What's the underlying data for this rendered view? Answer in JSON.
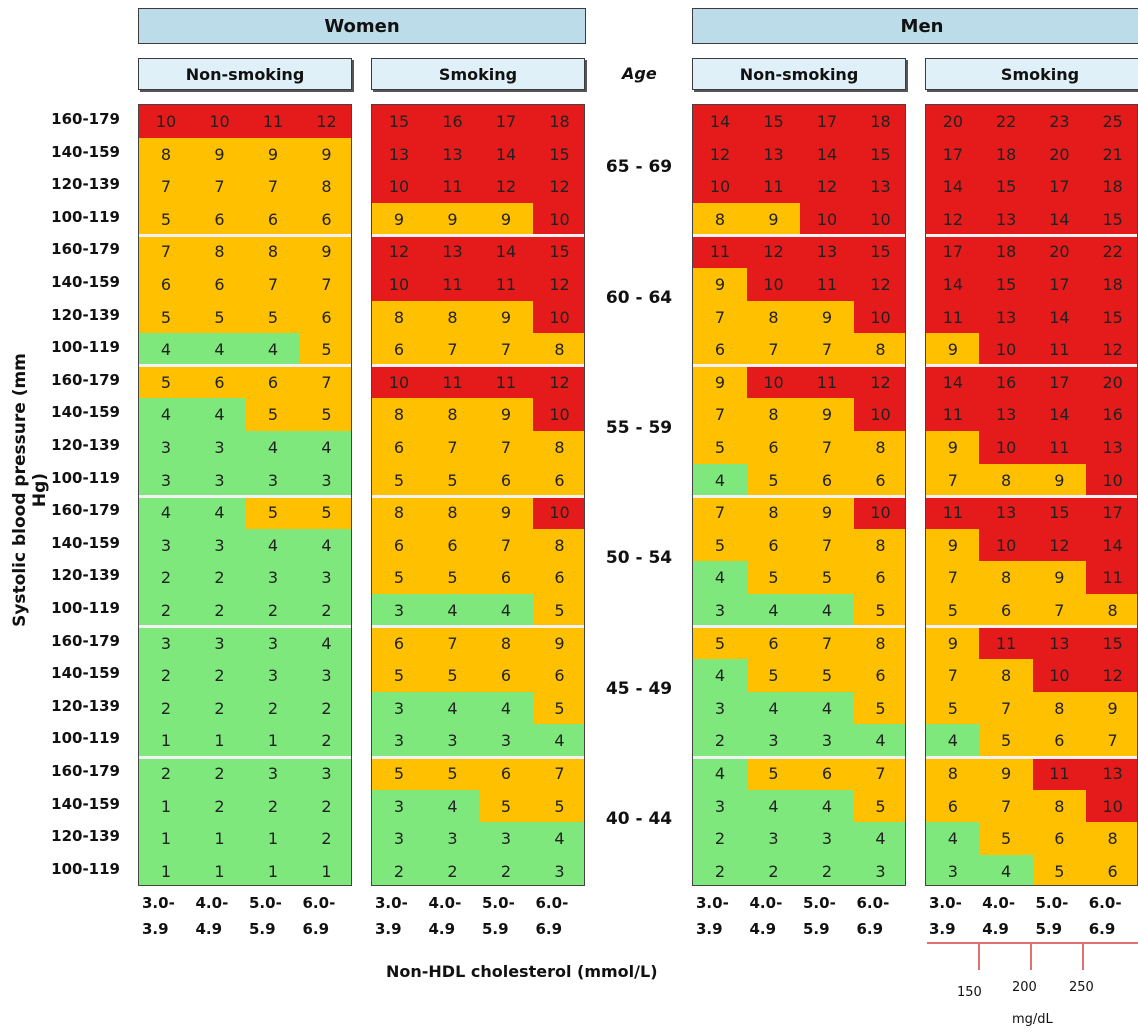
{
  "chart_data": {
    "type": "heatmap",
    "ylabel": "Systolic blood pressure (mm Hg)",
    "xlabel": "Non-HDL cholesterol (mmol/L)",
    "age_header": "Age",
    "sex_labels": [
      "Women",
      "Men"
    ],
    "smoking_labels": [
      "Non-smoking",
      "Smoking"
    ],
    "sbp_rows": [
      "160-179",
      "140-159",
      "120-139",
      "100-119"
    ],
    "age_groups": [
      "65 - 69",
      "60 - 64",
      "55 - 59",
      "50 - 54",
      "45 - 49",
      "40 - 44"
    ],
    "chol_columns": [
      [
        "3.0-",
        "3.9"
      ],
      [
        "4.0-",
        "4.9"
      ],
      [
        "5.0-",
        "5.9"
      ],
      [
        "6.0-",
        "6.9"
      ]
    ],
    "mgdl_ticks": [
      "150",
      "200",
      "250"
    ],
    "mgdl_unit": "mg/dL",
    "colors": {
      "green": "#7ee87c",
      "orange": "#ffc000",
      "red": "#e51a1a"
    },
    "panels": [
      {
        "sex": "Women",
        "smoking": "Non-smoking",
        "values": [
          [
            [
              10,
              10,
              11,
              12
            ],
            [
              8,
              9,
              9,
              9
            ],
            [
              7,
              7,
              7,
              8
            ],
            [
              5,
              6,
              6,
              6
            ]
          ],
          [
            [
              7,
              8,
              8,
              9
            ],
            [
              6,
              6,
              7,
              7
            ],
            [
              5,
              5,
              5,
              6
            ],
            [
              4,
              4,
              4,
              5
            ]
          ],
          [
            [
              5,
              6,
              6,
              7
            ],
            [
              4,
              4,
              5,
              5
            ],
            [
              3,
              3,
              4,
              4
            ],
            [
              3,
              3,
              3,
              3
            ]
          ],
          [
            [
              4,
              4,
              5,
              5
            ],
            [
              3,
              3,
              4,
              4
            ],
            [
              2,
              2,
              3,
              3
            ],
            [
              2,
              2,
              2,
              2
            ]
          ],
          [
            [
              3,
              3,
              3,
              4
            ],
            [
              2,
              2,
              3,
              3
            ],
            [
              2,
              2,
              2,
              2
            ],
            [
              1,
              1,
              1,
              2
            ]
          ],
          [
            [
              2,
              2,
              3,
              3
            ],
            [
              1,
              2,
              2,
              2
            ],
            [
              1,
              1,
              1,
              2
            ],
            [
              1,
              1,
              1,
              1
            ]
          ]
        ]
      },
      {
        "sex": "Women",
        "smoking": "Smoking",
        "values": [
          [
            [
              15,
              16,
              17,
              18
            ],
            [
              13,
              13,
              14,
              15
            ],
            [
              10,
              11,
              12,
              12
            ],
            [
              9,
              9,
              9,
              10
            ]
          ],
          [
            [
              12,
              13,
              14,
              15
            ],
            [
              10,
              11,
              11,
              12
            ],
            [
              8,
              8,
              9,
              10
            ],
            [
              6,
              7,
              7,
              8
            ]
          ],
          [
            [
              10,
              11,
              11,
              12
            ],
            [
              8,
              8,
              9,
              10
            ],
            [
              6,
              7,
              7,
              8
            ],
            [
              5,
              5,
              6,
              6
            ]
          ],
          [
            [
              8,
              8,
              9,
              10
            ],
            [
              6,
              6,
              7,
              8
            ],
            [
              5,
              5,
              6,
              6
            ],
            [
              3,
              4,
              4,
              5
            ]
          ],
          [
            [
              6,
              7,
              8,
              9
            ],
            [
              5,
              5,
              6,
              6
            ],
            [
              3,
              4,
              4,
              5
            ],
            [
              3,
              3,
              3,
              4
            ]
          ],
          [
            [
              5,
              5,
              6,
              7
            ],
            [
              3,
              4,
              5,
              5
            ],
            [
              3,
              3,
              3,
              4
            ],
            [
              2,
              2,
              2,
              3
            ]
          ]
        ]
      },
      {
        "sex": "Men",
        "smoking": "Non-smoking",
        "values": [
          [
            [
              14,
              15,
              17,
              18
            ],
            [
              12,
              13,
              14,
              15
            ],
            [
              10,
              11,
              12,
              13
            ],
            [
              8,
              9,
              10,
              10
            ]
          ],
          [
            [
              11,
              12,
              13,
              15
            ],
            [
              9,
              10,
              11,
              12
            ],
            [
              7,
              8,
              9,
              10
            ],
            [
              6,
              7,
              7,
              8
            ]
          ],
          [
            [
              9,
              10,
              11,
              12
            ],
            [
              7,
              8,
              9,
              10
            ],
            [
              5,
              6,
              7,
              8
            ],
            [
              4,
              5,
              6,
              6
            ]
          ],
          [
            [
              7,
              8,
              9,
              10
            ],
            [
              5,
              6,
              7,
              8
            ],
            [
              4,
              5,
              5,
              6
            ],
            [
              3,
              4,
              4,
              5
            ]
          ],
          [
            [
              5,
              6,
              7,
              8
            ],
            [
              4,
              5,
              5,
              6
            ],
            [
              3,
              4,
              4,
              5
            ],
            [
              2,
              3,
              3,
              4
            ]
          ],
          [
            [
              4,
              5,
              6,
              7
            ],
            [
              3,
              4,
              4,
              5
            ],
            [
              2,
              3,
              3,
              4
            ],
            [
              2,
              2,
              2,
              3
            ]
          ]
        ]
      },
      {
        "sex": "Men",
        "smoking": "Smoking",
        "values": [
          [
            [
              20,
              22,
              23,
              25
            ],
            [
              17,
              18,
              20,
              21
            ],
            [
              14,
              15,
              17,
              18
            ],
            [
              12,
              13,
              14,
              15
            ]
          ],
          [
            [
              17,
              18,
              20,
              22
            ],
            [
              14,
              15,
              17,
              18
            ],
            [
              11,
              13,
              14,
              15
            ],
            [
              9,
              10,
              11,
              12
            ]
          ],
          [
            [
              14,
              16,
              17,
              20
            ],
            [
              11,
              13,
              14,
              16
            ],
            [
              9,
              10,
              11,
              13
            ],
            [
              7,
              8,
              9,
              10
            ]
          ],
          [
            [
              11,
              13,
              15,
              17
            ],
            [
              9,
              10,
              12,
              14
            ],
            [
              7,
              8,
              9,
              11
            ],
            [
              5,
              6,
              7,
              8
            ]
          ],
          [
            [
              9,
              11,
              13,
              15
            ],
            [
              7,
              8,
              10,
              12
            ],
            [
              5,
              7,
              8,
              9
            ],
            [
              4,
              5,
              6,
              7
            ]
          ],
          [
            [
              8,
              9,
              11,
              13
            ],
            [
              6,
              7,
              8,
              10
            ],
            [
              4,
              5,
              6,
              8
            ],
            [
              3,
              4,
              5,
              6
            ]
          ]
        ]
      }
    ]
  }
}
